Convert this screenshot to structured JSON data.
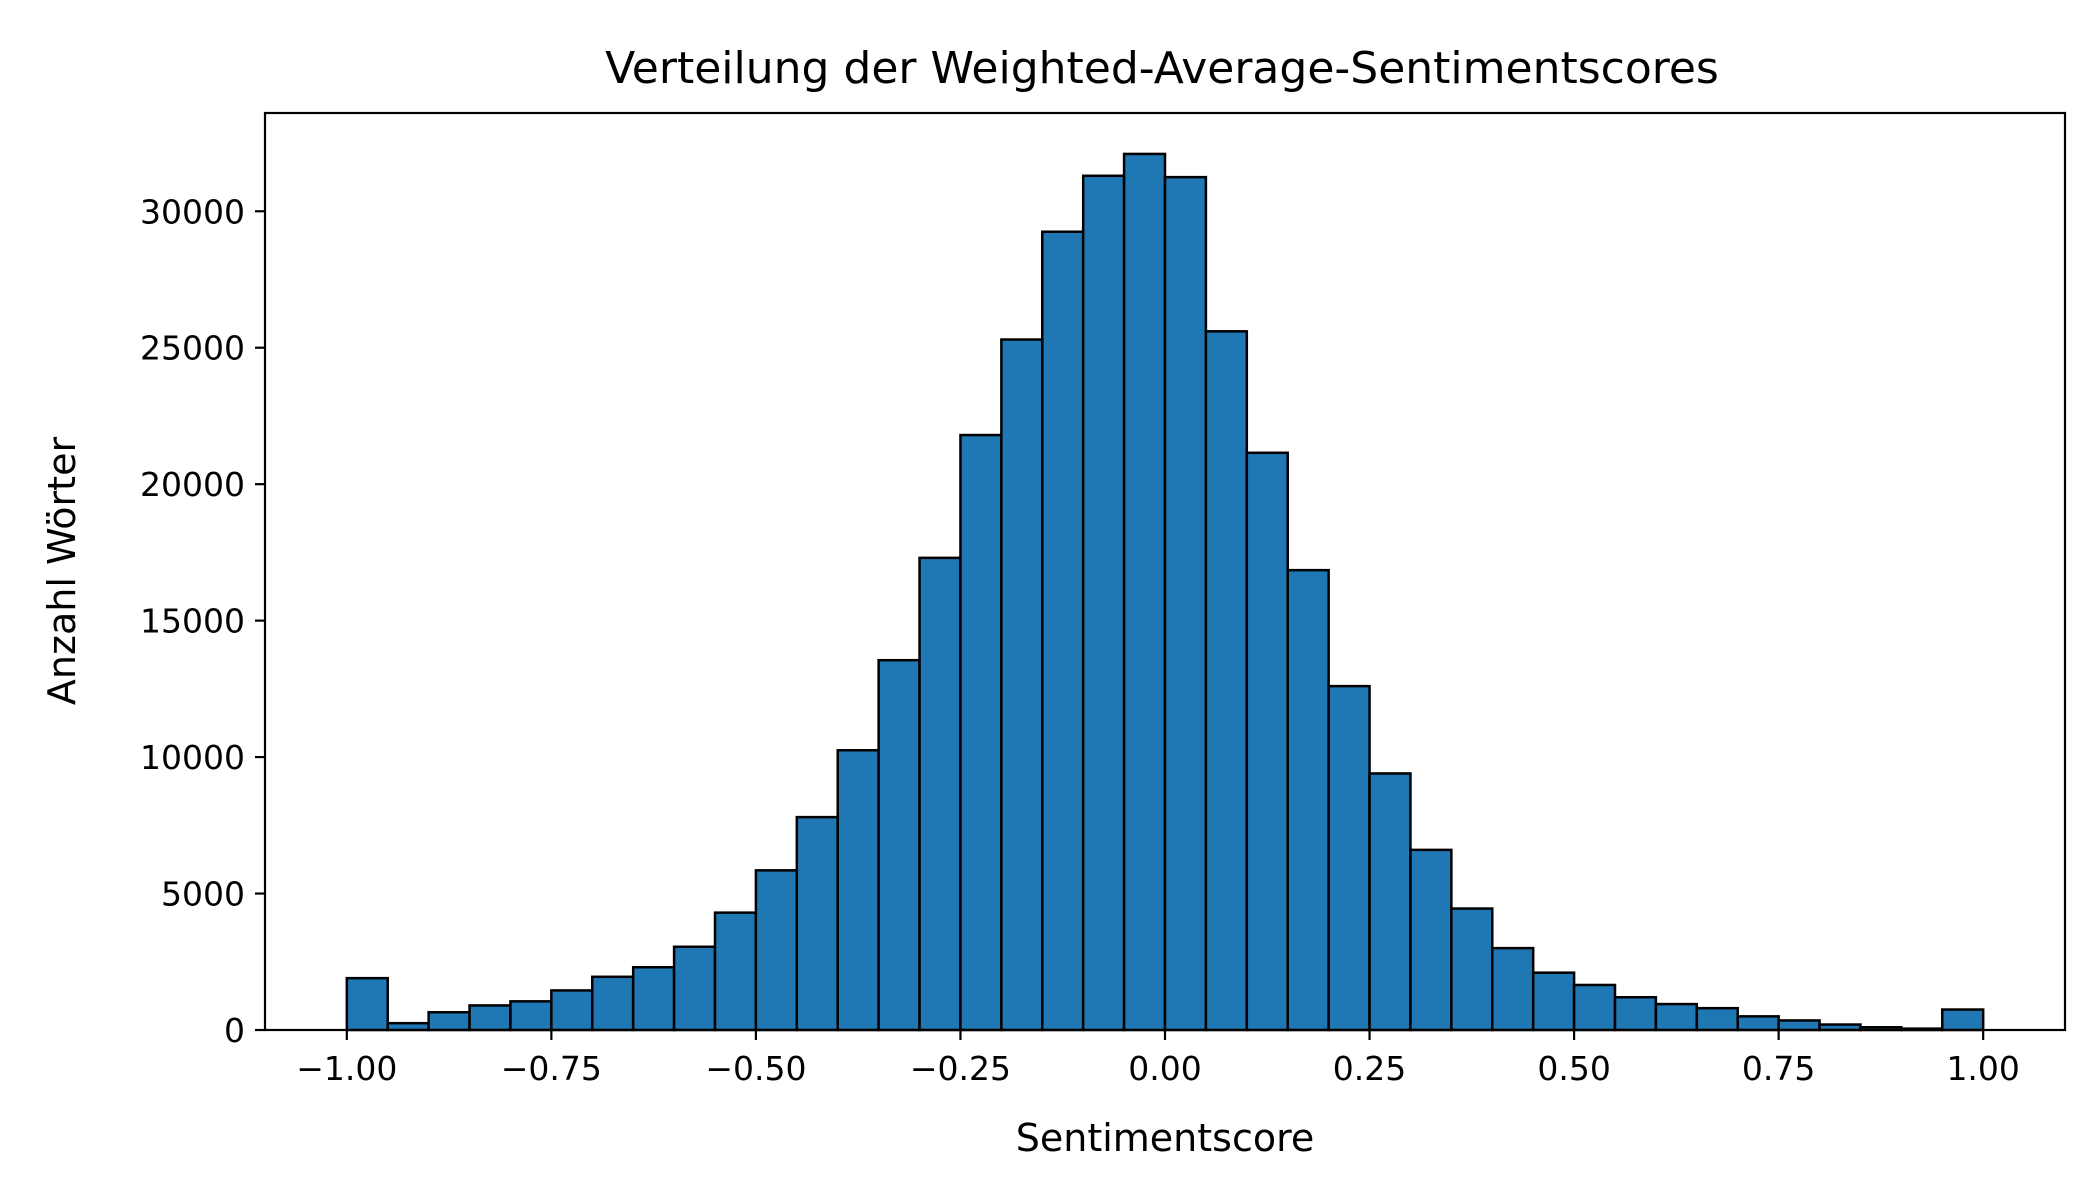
{
  "chart_data": {
    "type": "bar",
    "title": "Verteilung der Weighted-Average-Sentimentscores",
    "xlabel": "Sentimentscore",
    "ylabel": "Anzahl Wörter",
    "xlim": [
      -1.1,
      1.1
    ],
    "ylim": [
      0,
      33600
    ],
    "grid": false,
    "bar_color": "#1f77b4",
    "edge_color": "#000000",
    "bin_start": -1.0,
    "bin_width": 0.05,
    "values": [
      1900,
      250,
      650,
      900,
      1050,
      1450,
      1950,
      2300,
      3050,
      4300,
      5850,
      7800,
      10250,
      13550,
      17300,
      21800,
      25300,
      29250,
      31300,
      32100,
      31250,
      25600,
      21150,
      16850,
      12600,
      9400,
      6600,
      4450,
      3000,
      2100,
      1650,
      1200,
      950,
      800,
      500,
      350,
      200,
      100,
      50,
      750
    ],
    "x_ticks": [
      {
        "value": -1.0,
        "label": "−1.00"
      },
      {
        "value": -0.75,
        "label": "−0.75"
      },
      {
        "value": -0.5,
        "label": "−0.50"
      },
      {
        "value": -0.25,
        "label": "−0.25"
      },
      {
        "value": 0.0,
        "label": "0.00"
      },
      {
        "value": 0.25,
        "label": "0.25"
      },
      {
        "value": 0.5,
        "label": "0.50"
      },
      {
        "value": 0.75,
        "label": "0.75"
      },
      {
        "value": 1.0,
        "label": "1.00"
      }
    ],
    "y_ticks": [
      {
        "value": 0,
        "label": "0"
      },
      {
        "value": 5000,
        "label": "5000"
      },
      {
        "value": 10000,
        "label": "10000"
      },
      {
        "value": 15000,
        "label": "15000"
      },
      {
        "value": 20000,
        "label": "20000"
      },
      {
        "value": 25000,
        "label": "25000"
      },
      {
        "value": 30000,
        "label": "30000"
      }
    ]
  }
}
